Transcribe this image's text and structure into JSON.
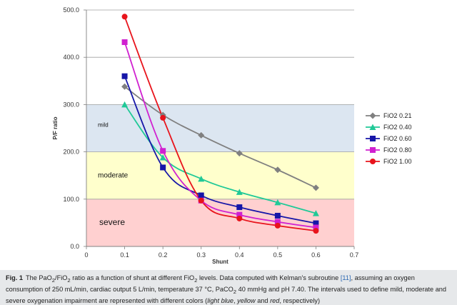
{
  "chart_data": {
    "type": "line",
    "x": [
      0.1,
      0.2,
      0.3,
      0.4,
      0.5,
      0.6
    ],
    "xlabel": "Shunt",
    "ylabel": "P/F ratio",
    "xlim": [
      0,
      0.7
    ],
    "ylim": [
      0,
      500
    ],
    "x_ticks": [
      "0",
      "0.1",
      "0.2",
      "0.3",
      "0.4",
      "0.5",
      "0.6",
      "0.7"
    ],
    "y_ticks": [
      "0.0",
      "100.0",
      "200.0",
      "300.0",
      "400.0",
      "500.0"
    ],
    "grid": "horizontal",
    "legend_position": "right",
    "bands": [
      {
        "label": "mild",
        "from": 200,
        "to": 300,
        "color": "#dce6f1"
      },
      {
        "label": "moderate",
        "from": 100,
        "to": 200,
        "color": "#ffffcc"
      },
      {
        "label": "severe",
        "from": 0,
        "to": 100,
        "color": "#ffd0d0"
      }
    ],
    "series": [
      {
        "name": "FiO2 0.21",
        "color": "#808080",
        "marker": "diamond",
        "values": [
          338,
          278,
          235,
          197,
          162,
          124
        ]
      },
      {
        "name": "FiO2 0.40",
        "color": "#20c997",
        "marker": "triangle",
        "values": [
          300,
          188,
          143,
          115,
          93,
          70
        ]
      },
      {
        "name": "FiO2 0.60",
        "color": "#1616a8",
        "marker": "square",
        "values": [
          360,
          167,
          108,
          83,
          65,
          49
        ]
      },
      {
        "name": "FiO2 0.80",
        "color": "#d020d0",
        "marker": "square",
        "values": [
          432,
          202,
          97,
          67,
          52,
          40
        ]
      },
      {
        "name": "FiO2 1.00",
        "color": "#e8141c",
        "marker": "circle",
        "values": [
          486,
          272,
          97,
          59,
          44,
          33
        ]
      }
    ]
  },
  "caption": {
    "fig_label": "Fig. 1",
    "text_1": "The PaO",
    "sub_1": "2",
    "text_2": "/FiO",
    "sub_2": "2",
    "text_3": " ratio as a function of shunt at different FiO",
    "sub_3": "2",
    "text_4": " levels. Data computed with Kelman's subroutine ",
    "ref": "[11]",
    "text_5": ", assuming an oxygen consumption of 250 mL/min, cardiac output 5 L/min, temperature 37 °C, PaCO",
    "sub_4": "2",
    "text_6": " 40 mmHg and pH 7.40. The intervals used to define mild, moderate and severe oxygenation impairment are represented with different colors (",
    "color_1": "light blue",
    "sep_1": ", ",
    "color_2": "yellow",
    "sep_2": " and ",
    "color_3": "red",
    "text_7": ", respectively)"
  }
}
